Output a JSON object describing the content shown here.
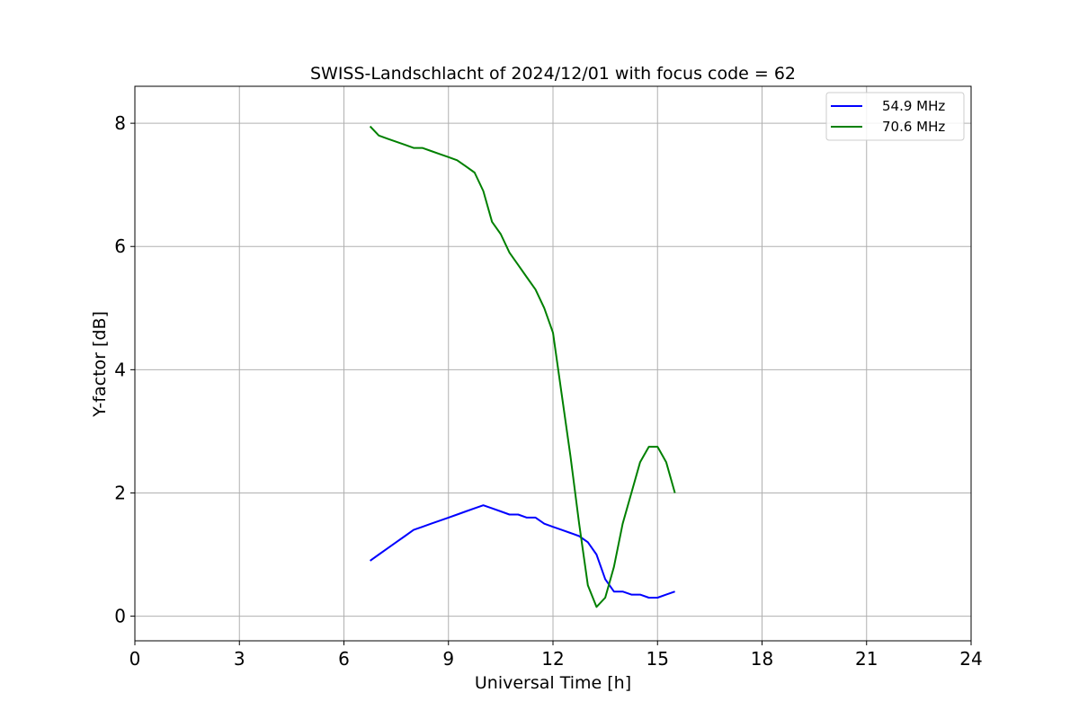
{
  "chart_data": {
    "type": "line",
    "title": "SWISS-Landschlacht of 2024/12/01 with focus code = 62",
    "xlabel": "Universal Time [h]",
    "ylabel": "Y-factor [dB]",
    "xlim": [
      0,
      24
    ],
    "ylim": [
      -0.4,
      8.6
    ],
    "x_ticks": [
      0,
      3,
      6,
      9,
      12,
      15,
      18,
      21,
      24
    ],
    "y_ticks": [
      0,
      2,
      4,
      6,
      8
    ],
    "grid": true,
    "legend_position": "top-right",
    "series": [
      {
        "name": "54.9 MHz",
        "color": "#0000ff",
        "x": [
          6.75,
          7.0,
          7.25,
          7.5,
          7.75,
          8.0,
          8.25,
          8.5,
          8.75,
          9.0,
          9.25,
          9.5,
          9.75,
          10.0,
          10.25,
          10.5,
          10.75,
          11.0,
          11.25,
          11.5,
          11.75,
          12.0,
          12.25,
          12.5,
          12.75,
          13.0,
          13.25,
          13.5,
          13.75,
          14.0,
          14.25,
          14.5,
          14.75,
          15.0,
          15.25,
          15.5
        ],
        "values": [
          0.9,
          1.0,
          1.1,
          1.2,
          1.3,
          1.4,
          1.45,
          1.5,
          1.55,
          1.6,
          1.65,
          1.7,
          1.75,
          1.8,
          1.75,
          1.7,
          1.65,
          1.65,
          1.6,
          1.6,
          1.5,
          1.45,
          1.4,
          1.35,
          1.3,
          1.2,
          1.0,
          0.6,
          0.4,
          0.4,
          0.35,
          0.35,
          0.3,
          0.3,
          0.35,
          0.4
        ]
      },
      {
        "name": "70.6 MHz",
        "color": "#008000",
        "x": [
          6.75,
          7.0,
          7.25,
          7.5,
          7.75,
          8.0,
          8.25,
          8.5,
          8.75,
          9.0,
          9.25,
          9.5,
          9.75,
          10.0,
          10.25,
          10.5,
          10.75,
          11.0,
          11.25,
          11.5,
          11.75,
          12.0,
          12.25,
          12.5,
          12.75,
          13.0,
          13.25,
          13.5,
          13.75,
          14.0,
          14.25,
          14.5,
          14.75,
          15.0,
          15.25,
          15.5
        ],
        "values": [
          7.95,
          7.8,
          7.75,
          7.7,
          7.65,
          7.6,
          7.6,
          7.55,
          7.5,
          7.45,
          7.4,
          7.3,
          7.2,
          6.9,
          6.4,
          6.2,
          5.9,
          5.7,
          5.5,
          5.3,
          5.0,
          4.6,
          3.6,
          2.6,
          1.5,
          0.5,
          0.15,
          0.3,
          0.8,
          1.5,
          2.0,
          2.5,
          2.75,
          2.75,
          2.5,
          2.0
        ]
      }
    ]
  }
}
